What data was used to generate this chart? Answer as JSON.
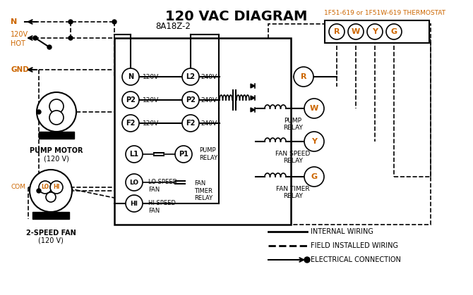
{
  "title": "120 VAC DIAGRAM",
  "title_color": "#000000",
  "title_fontsize": 14,
  "thermostat_label": "1F51-619 or 1F51W-619 THERMOSTAT",
  "thermostat_color": "#cc6600",
  "box_label": "8A18Z-2",
  "legend_items": [
    {
      "label": "INTERNAL WIRING",
      "linestyle": "-",
      "color": "#000000"
    },
    {
      "label": "FIELD INSTALLED WIRING",
      "linestyle": "--",
      "color": "#000000"
    },
    {
      "label": "ELECTRICAL CONNECTION",
      "linestyle": "-",
      "color": "#000000"
    }
  ],
  "bg_color": "#ffffff",
  "line_color": "#000000",
  "orange_color": "#cc6600",
  "terminal_letters": [
    "R",
    "W",
    "Y",
    "G"
  ],
  "terminal_color": "#cc6600",
  "left_labels": [
    "N",
    "120V\nHOT",
    "GND"
  ],
  "main_box_terminals_left": [
    "N",
    "P2",
    "F2"
  ],
  "main_box_terminals_right": [
    "L2",
    "P2",
    "F2"
  ],
  "main_box_voltages_left": [
    "120V",
    "120V",
    "120V"
  ],
  "main_box_voltages_right": [
    "240V",
    "240V",
    "240V"
  ],
  "relay_labels": [
    "L1",
    "LO",
    "HI"
  ],
  "right_relays": [
    "PUMP\nRELAY",
    "FAN SPEED\nRELAY",
    "FAN TIMER\nRELAY"
  ],
  "right_relay_letters": [
    "R",
    "W",
    "Y",
    "G"
  ]
}
